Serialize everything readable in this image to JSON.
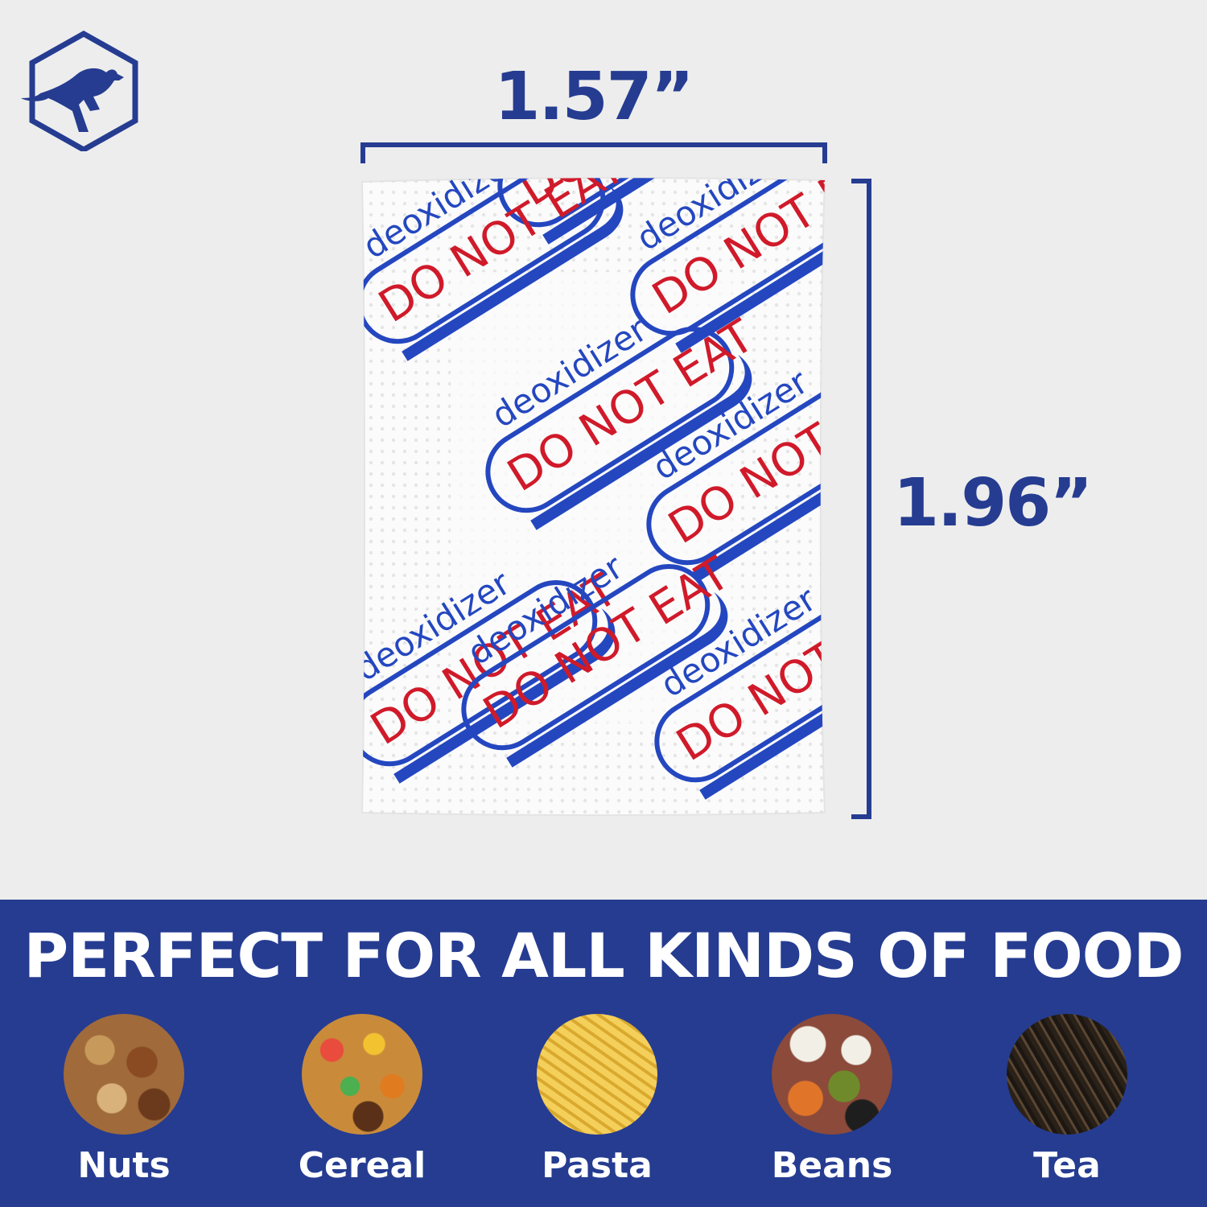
{
  "colors": {
    "background": "#ededed",
    "brand_blue": "#253c91",
    "packet_blue": "#2447c0",
    "warning_red": "#d01a2a",
    "white": "#ffffff"
  },
  "logo": {
    "icon": "kangaroo-hexagon-logo"
  },
  "dimensions": {
    "width": "1.57”",
    "height": "1.96”"
  },
  "packet": {
    "brand_text": "deoxidizer",
    "warning_text": "DO NOT EAT"
  },
  "banner": {
    "title": "PERFECT FOR ALL KINDS OF FOOD",
    "foods": [
      {
        "label": "Nuts",
        "icon": "nuts-photo"
      },
      {
        "label": "Cereal",
        "icon": "cereal-photo"
      },
      {
        "label": "Pasta",
        "icon": "pasta-photo"
      },
      {
        "label": "Beans",
        "icon": "beans-photo"
      },
      {
        "label": "Tea",
        "icon": "tea-photo"
      }
    ]
  }
}
